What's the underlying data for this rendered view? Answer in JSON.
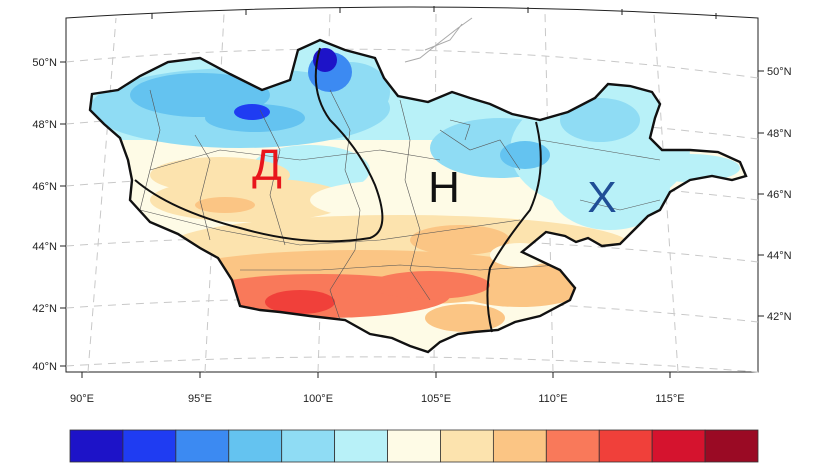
{
  "map": {
    "regions": [
      {
        "id": "d",
        "label": "Д",
        "color": "#e8161b"
      },
      {
        "id": "n",
        "label": "Н",
        "color": "#111111"
      },
      {
        "id": "kh",
        "label": "Х",
        "color": "#1f4e96"
      }
    ],
    "lat_labels_left": [
      "50°N",
      "48°N",
      "46°N",
      "44°N",
      "42°N",
      "40°N"
    ],
    "lat_labels_right": [
      "50°N",
      "48°N",
      "46°N",
      "44°N",
      "42°N"
    ],
    "lon_labels": [
      "90°E",
      "95°E",
      "100°E",
      "105°E",
      "110°E",
      "115°E"
    ],
    "colorbar": {
      "colors": [
        "#1d13c8",
        "#1f3cf2",
        "#3c8af2",
        "#64c3f0",
        "#8fdcf4",
        "#b8f1f8",
        "#fefbe6",
        "#fce3ae",
        "#fbc584",
        "#f9795a",
        "#f0403a",
        "#d5132e",
        "#9a0a24"
      ]
    }
  }
}
